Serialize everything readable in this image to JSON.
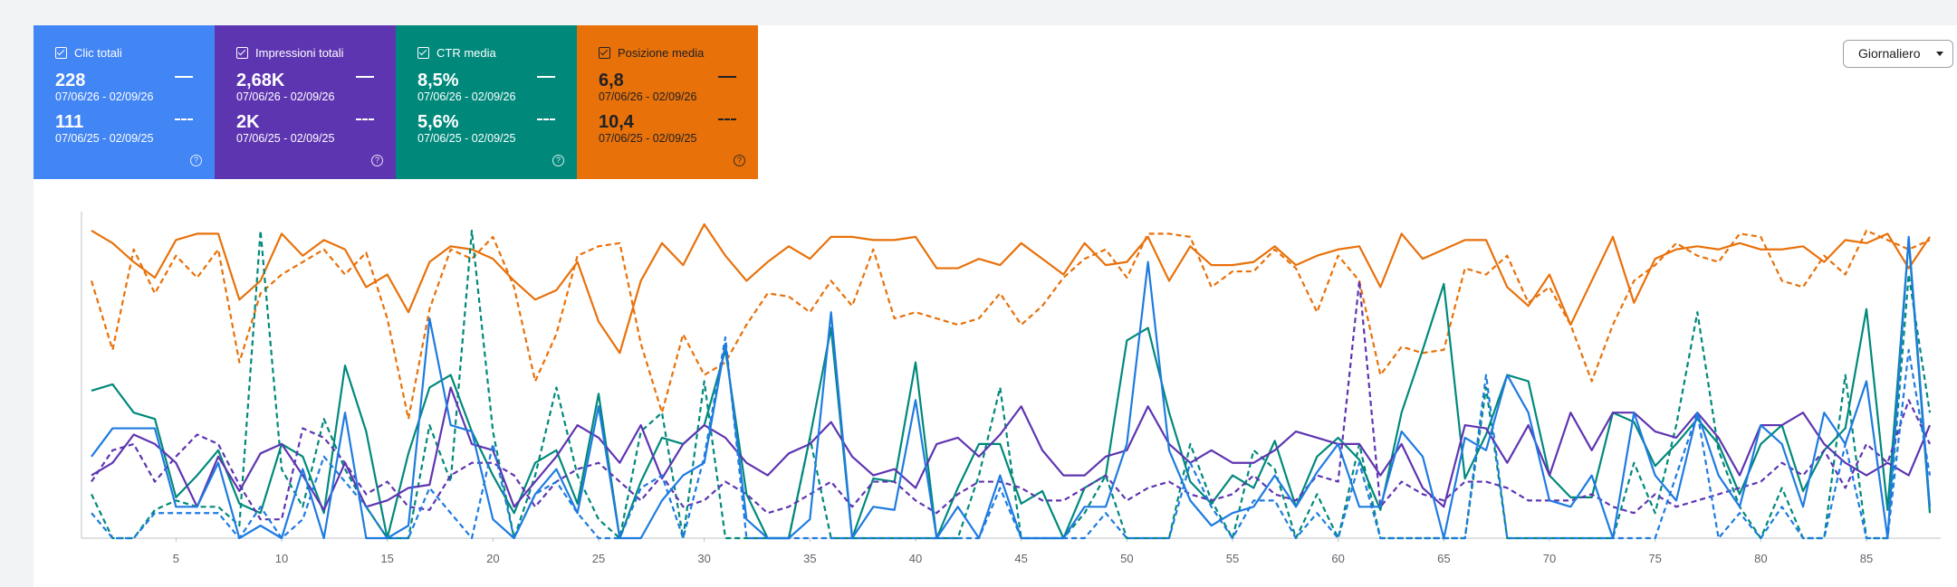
{
  "cards": [
    {
      "label": "Clic totali",
      "current": "228",
      "current_range": "07/06/26 - 02/09/26",
      "previous": "111",
      "previous_range": "07/06/25 - 02/09/25",
      "color": "#4285f4",
      "text_color": "#ffffff"
    },
    {
      "label": "Impressioni totali",
      "current": "2,68K",
      "current_range": "07/06/26 - 02/09/26",
      "previous": "2K",
      "previous_range": "07/06/25 - 02/09/25",
      "color": "#5e35b1",
      "text_color": "#ffffff"
    },
    {
      "label": "CTR media",
      "current": "8,5%",
      "current_range": "07/06/26 - 02/09/26",
      "previous": "5,6%",
      "previous_range": "07/06/25 - 02/09/25",
      "color": "#00897b",
      "text_color": "#ffffff"
    },
    {
      "label": "Posizione media",
      "current": "6,8",
      "current_range": "07/06/26 - 02/09/26",
      "previous": "10,4",
      "previous_range": "07/06/25 - 02/09/25",
      "color": "#e8710a",
      "text_color": "#202124"
    }
  ],
  "dropdown": "Giornaliero",
  "chart_data": {
    "type": "line",
    "xlim": [
      1,
      88
    ],
    "ylim": [
      0,
      100
    ],
    "xticks": [
      5,
      10,
      15,
      20,
      25,
      30,
      35,
      40,
      45,
      50,
      55,
      60,
      65,
      70,
      75,
      80,
      85
    ],
    "x": [
      1,
      2,
      3,
      4,
      5,
      6,
      7,
      8,
      9,
      10,
      11,
      12,
      13,
      14,
      15,
      16,
      17,
      18,
      19,
      20,
      21,
      22,
      23,
      24,
      25,
      26,
      27,
      28,
      29,
      30,
      31,
      32,
      33,
      34,
      35,
      36,
      37,
      38,
      39,
      40,
      41,
      42,
      43,
      44,
      45,
      46,
      47,
      48,
      49,
      50,
      51,
      52,
      53,
      54,
      55,
      56,
      57,
      58,
      59,
      60,
      61,
      62,
      63,
      64,
      65,
      66,
      67,
      68,
      69,
      70,
      71,
      72,
      73,
      74,
      75,
      76,
      77,
      78,
      79,
      80,
      81,
      82,
      83,
      84,
      85,
      86,
      87,
      88
    ],
    "series": [
      {
        "color": "#e8710a",
        "dashed": false,
        "values": [
          98,
          94,
          88,
          83,
          95,
          97,
          97,
          76,
          82,
          97,
          90,
          95,
          92,
          80,
          84,
          72,
          88,
          93,
          92,
          89,
          82,
          76,
          79,
          88,
          69,
          59,
          82,
          94,
          87,
          100,
          90,
          82,
          88,
          93,
          89,
          96,
          96,
          95,
          95,
          96,
          86,
          86,
          89,
          87,
          94,
          89,
          84,
          94,
          87,
          88,
          96,
          82,
          93,
          87,
          87,
          88,
          93,
          87,
          90,
          92,
          93,
          80,
          97,
          89,
          92,
          95,
          95,
          80,
          74,
          84,
          68,
          82,
          96,
          75,
          89,
          92,
          93,
          92,
          94,
          92,
          92,
          93,
          88,
          95,
          94,
          97,
          86,
          96
        ]
      },
      {
        "color": "#e8710a",
        "dashed": true,
        "values": [
          82,
          60,
          92,
          78,
          90,
          83,
          92,
          56,
          78,
          84,
          88,
          92,
          84,
          91,
          70,
          38,
          73,
          92,
          89,
          96,
          80,
          50,
          65,
          90,
          93,
          94,
          62,
          40,
          65,
          52,
          56,
          68,
          78,
          77,
          72,
          82,
          74,
          92,
          70,
          72,
          70,
          68,
          70,
          78,
          68,
          74,
          83,
          89,
          92,
          83,
          97,
          97,
          96,
          80,
          85,
          85,
          92,
          86,
          72,
          90,
          82,
          52,
          61,
          59,
          60,
          86,
          84,
          90,
          75,
          80,
          68,
          50,
          68,
          82,
          87,
          94,
          90,
          88,
          97,
          96,
          82,
          80,
          90,
          84,
          98,
          95,
          92,
          95
        ]
      },
      {
        "color": "#00897b",
        "dashed": false,
        "values": [
          47,
          49,
          40,
          38,
          13,
          20,
          28,
          11,
          8,
          30,
          26,
          8,
          55,
          34,
          0,
          27,
          48,
          52,
          34,
          20,
          8,
          24,
          28,
          11,
          46,
          0,
          18,
          32,
          30,
          36,
          60,
          14,
          0,
          0,
          32,
          67,
          0,
          19,
          18,
          56,
          0,
          16,
          30,
          30,
          11,
          15,
          0,
          16,
          20,
          63,
          67,
          40,
          18,
          11,
          20,
          16,
          31,
          10,
          26,
          32,
          25,
          9,
          40,
          60,
          81,
          19,
          33,
          52,
          50,
          20,
          13,
          13,
          40,
          37,
          23,
          30,
          38,
          30,
          14,
          30,
          36,
          15,
          28,
          35,
          73,
          9,
          95,
          8
        ]
      },
      {
        "color": "#00897b",
        "dashed": true,
        "values": [
          14,
          0,
          0,
          9,
          12,
          10,
          10,
          4,
          98,
          22,
          10,
          38,
          22,
          10,
          0,
          0,
          36,
          18,
          98,
          34,
          0,
          20,
          48,
          20,
          6,
          0,
          34,
          40,
          0,
          50,
          0,
          0,
          0,
          0,
          32,
          0,
          0,
          0,
          0,
          0,
          0,
          0,
          20,
          48,
          0,
          0,
          0,
          8,
          20,
          0,
          0,
          0,
          30,
          12,
          0,
          28,
          22,
          0,
          14,
          0,
          30,
          0,
          0,
          0,
          0,
          0,
          48,
          0,
          0,
          0,
          0,
          0,
          0,
          24,
          8,
          36,
          72,
          28,
          10,
          0,
          16,
          0,
          0,
          52,
          0,
          0,
          84,
          40
        ]
      },
      {
        "color": "#5e35b1",
        "dashed": false,
        "values": [
          20,
          24,
          33,
          30,
          24,
          10,
          26,
          15,
          27,
          30,
          20,
          9,
          24,
          10,
          12,
          16,
          17,
          48,
          30,
          28,
          10,
          18,
          26,
          36,
          32,
          24,
          36,
          19,
          30,
          36,
          32,
          24,
          20,
          27,
          30,
          37,
          26,
          20,
          22,
          16,
          30,
          32,
          26,
          33,
          42,
          28,
          20,
          20,
          26,
          28,
          42,
          30,
          24,
          28,
          24,
          24,
          28,
          34,
          32,
          30,
          30,
          20,
          30,
          16,
          10,
          36,
          35,
          24,
          36,
          20,
          40,
          28,
          40,
          40,
          34,
          32,
          40,
          32,
          20,
          36,
          36,
          40,
          30,
          24,
          20,
          24,
          20,
          36
        ]
      },
      {
        "color": "#5e35b1",
        "dashed": true,
        "values": [
          18,
          28,
          30,
          18,
          26,
          33,
          30,
          17,
          6,
          6,
          35,
          32,
          24,
          14,
          18,
          10,
          9,
          20,
          24,
          24,
          20,
          10,
          18,
          22,
          24,
          18,
          12,
          20,
          10,
          12,
          18,
          14,
          8,
          10,
          14,
          18,
          10,
          18,
          18,
          12,
          8,
          14,
          18,
          18,
          16,
          12,
          12,
          16,
          20,
          12,
          16,
          18,
          14,
          12,
          14,
          20,
          14,
          12,
          20,
          18,
          82,
          10,
          18,
          14,
          12,
          18,
          18,
          16,
          12,
          12,
          12,
          14,
          10,
          8,
          14,
          10,
          12,
          14,
          16,
          18,
          24,
          20,
          28,
          16,
          30,
          24,
          44,
          30
        ]
      },
      {
        "color": "#1e7be0",
        "dashed": false,
        "values": [
          26,
          35,
          35,
          35,
          10,
          10,
          24,
          0,
          4,
          0,
          22,
          0,
          40,
          0,
          0,
          4,
          70,
          36,
          34,
          6,
          0,
          14,
          22,
          8,
          42,
          0,
          0,
          12,
          20,
          24,
          62,
          6,
          0,
          0,
          6,
          72,
          0,
          10,
          9,
          44,
          0,
          10,
          0,
          20,
          0,
          0,
          0,
          10,
          10,
          30,
          88,
          28,
          12,
          4,
          8,
          10,
          20,
          10,
          21,
          30,
          10,
          10,
          34,
          26,
          0,
          32,
          28,
          52,
          40,
          12,
          10,
          20,
          0,
          40,
          20,
          12,
          40,
          20,
          10,
          36,
          30,
          10,
          40,
          30,
          50,
          0,
          96,
          10
        ]
      },
      {
        "color": "#1e7be0",
        "dashed": true,
        "values": [
          8,
          0,
          0,
          8,
          8,
          8,
          8,
          0,
          10,
          0,
          6,
          26,
          18,
          10,
          0,
          0,
          16,
          8,
          0,
          30,
          0,
          14,
          18,
          8,
          0,
          0,
          16,
          20,
          0,
          26,
          64,
          0,
          0,
          0,
          0,
          0,
          0,
          0,
          0,
          0,
          0,
          0,
          0,
          16,
          0,
          0,
          0,
          0,
          8,
          0,
          0,
          0,
          24,
          10,
          0,
          12,
          12,
          0,
          8,
          0,
          24,
          0,
          0,
          0,
          0,
          0,
          52,
          0,
          0,
          0,
          0,
          0,
          0,
          0,
          0,
          20,
          40,
          0,
          8,
          0,
          10,
          0,
          0,
          30,
          0,
          0,
          60,
          20
        ]
      }
    ]
  }
}
